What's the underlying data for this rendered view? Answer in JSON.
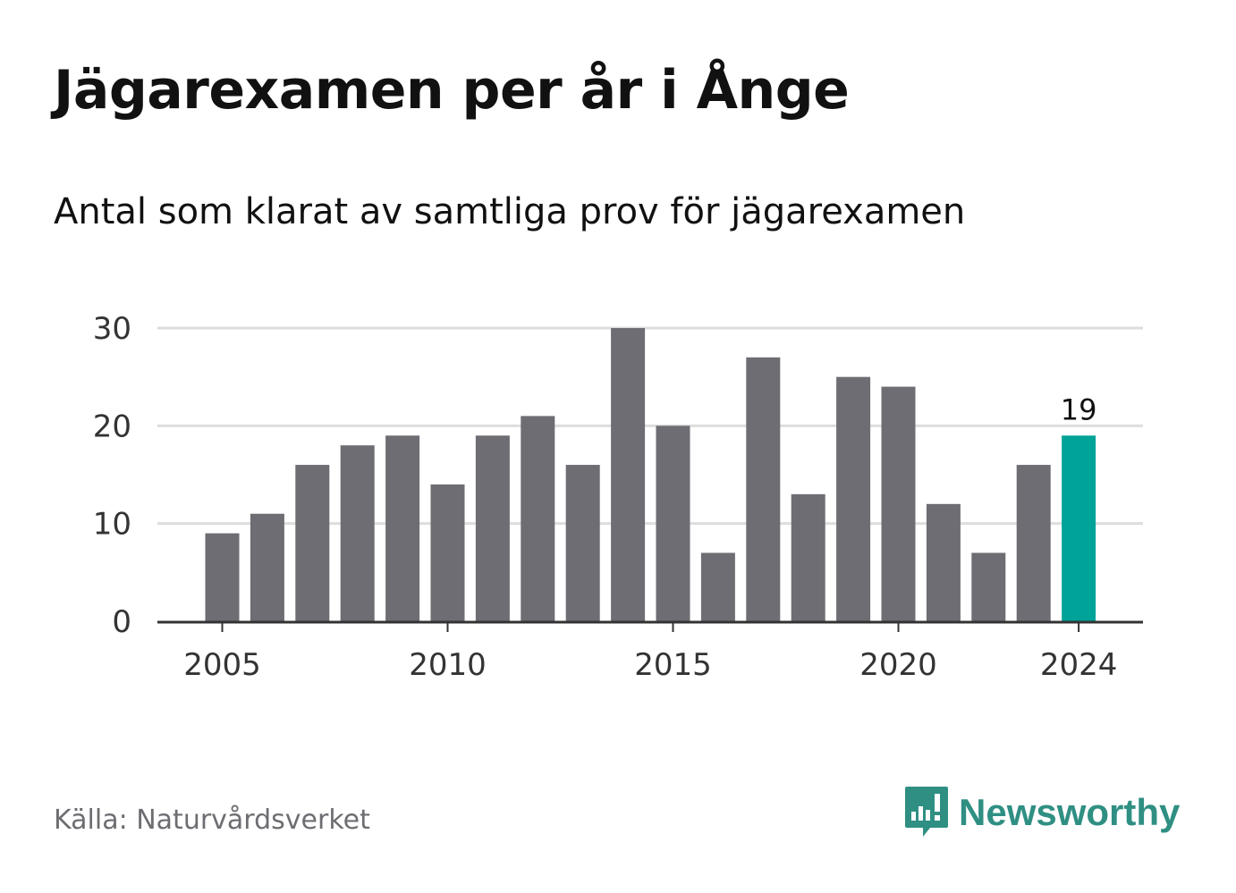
{
  "header": {
    "title": "Jägarexamen per år i Ånge",
    "subtitle": "Antal som klarat av samtliga prov för jägarexamen"
  },
  "footer": {
    "source": "Källa: Naturvårdsverket",
    "brand": "Newsworthy",
    "brand_icon": "newsworthy-logo-icon"
  },
  "colors": {
    "bar": "#6e6d73",
    "highlight": "#00a398",
    "grid": "#dddddd",
    "axis": "#333333",
    "brand": "#2f8f83"
  },
  "chart_data": {
    "type": "bar",
    "x": [
      2005,
      2006,
      2007,
      2008,
      2009,
      2010,
      2011,
      2012,
      2013,
      2014,
      2015,
      2016,
      2017,
      2018,
      2019,
      2020,
      2021,
      2022,
      2023,
      2024
    ],
    "values": [
      9,
      11,
      16,
      18,
      19,
      14,
      19,
      21,
      16,
      30,
      20,
      7,
      27,
      13,
      25,
      24,
      12,
      7,
      16,
      19
    ],
    "highlight": [
      2024
    ],
    "data_labels": [
      {
        "x": 2024,
        "label": "19"
      }
    ],
    "ylim": [
      0,
      30
    ],
    "yticks": [
      "0",
      "10",
      "20",
      "30"
    ],
    "xticks": [
      "2005",
      "2010",
      "2015",
      "2020",
      "2024"
    ],
    "grid": true
  }
}
